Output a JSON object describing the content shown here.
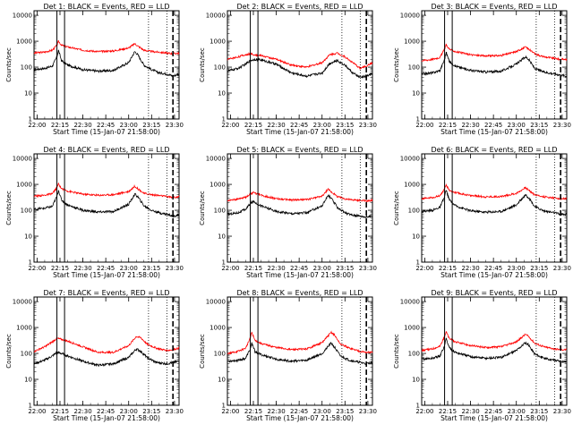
{
  "figure": {
    "ylabel": "Counts/sec",
    "xlabel_prefix": "Start Time (15-Jan-07 21:58:00)",
    "x_ticks": [
      "22:00",
      "22:15",
      "22:30",
      "22:45",
      "23:00",
      "23:15",
      "23:30"
    ],
    "y_ticks": [
      "1",
      "10",
      "100",
      "1000",
      "10000"
    ]
  },
  "colors": {
    "events": "#000000",
    "lld": "#ff0000"
  },
  "chart_data": [
    {
      "type": "line",
      "title": "Det 1: BLACK = Events, RED = LLD",
      "xlim": [
        "21:58",
        "23:33"
      ],
      "ylim": [
        1,
        15000
      ],
      "log_y": true,
      "vlines_solid": [
        "22:13",
        "22:18"
      ],
      "vlines_dotted": [
        "23:13",
        "23:25"
      ],
      "vlines_dashed": [
        "23:29"
      ],
      "series": [
        {
          "name": "Events",
          "color": "#000000",
          "x": [
            "21:58",
            "22:05",
            "22:10",
            "22:13",
            "22:14",
            "22:16",
            "22:20",
            "22:30",
            "22:40",
            "22:50",
            "23:00",
            "23:04",
            "23:06",
            "23:10",
            "23:15",
            "23:20",
            "23:25",
            "23:29",
            "23:33"
          ],
          "y": [
            80,
            90,
            110,
            250,
            450,
            180,
            120,
            80,
            70,
            75,
            150,
            400,
            300,
            120,
            80,
            60,
            55,
            45,
            55
          ]
        },
        {
          "name": "LLD",
          "color": "#ff0000",
          "x": [
            "21:58",
            "22:05",
            "22:10",
            "22:13",
            "22:14",
            "22:16",
            "22:20",
            "22:30",
            "22:40",
            "22:50",
            "23:00",
            "23:04",
            "23:06",
            "23:10",
            "23:15",
            "23:20",
            "23:25",
            "23:29",
            "23:33"
          ],
          "y": [
            350,
            380,
            450,
            700,
            1000,
            700,
            600,
            450,
            400,
            420,
            550,
            800,
            650,
            450,
            400,
            380,
            350,
            330,
            350
          ]
        }
      ]
    },
    {
      "type": "line",
      "title": "Det 2: BLACK = Events, RED = LLD",
      "xlim": [
        "21:58",
        "23:33"
      ],
      "ylim": [
        1,
        15000
      ],
      "log_y": true,
      "vlines_solid": [
        "22:13",
        "22:18"
      ],
      "vlines_dotted": [
        "23:13",
        "23:25"
      ],
      "vlines_dashed": [
        "23:29"
      ],
      "series": [
        {
          "name": "Events",
          "color": "#000000",
          "x": [
            "21:58",
            "22:05",
            "22:10",
            "22:13",
            "22:16",
            "22:20",
            "22:30",
            "22:40",
            "22:50",
            "23:00",
            "23:05",
            "23:10",
            "23:15",
            "23:20",
            "23:25",
            "23:29",
            "23:33"
          ],
          "y": [
            70,
            90,
            130,
            180,
            200,
            190,
            130,
            60,
            45,
            60,
            140,
            180,
            120,
            60,
            40,
            45,
            55
          ]
        },
        {
          "name": "LLD",
          "color": "#ff0000",
          "x": [
            "21:58",
            "22:05",
            "22:10",
            "22:13",
            "22:16",
            "22:20",
            "22:30",
            "22:40",
            "22:50",
            "23:00",
            "23:05",
            "23:10",
            "23:15",
            "23:20",
            "23:25",
            "23:29",
            "23:33"
          ],
          "y": [
            200,
            250,
            300,
            330,
            300,
            280,
            200,
            120,
            100,
            150,
            300,
            350,
            250,
            150,
            90,
            110,
            150
          ]
        }
      ]
    },
    {
      "type": "line",
      "title": "Det 3: BLACK = Events, RED = LLD",
      "xlim": [
        "21:58",
        "23:33"
      ],
      "ylim": [
        1,
        15000
      ],
      "log_y": true,
      "vlines_solid": [
        "22:13",
        "22:18"
      ],
      "vlines_dotted": [
        "23:13",
        "23:25"
      ],
      "vlines_dashed": [
        "23:29"
      ],
      "series": [
        {
          "name": "Events",
          "color": "#000000",
          "x": [
            "21:58",
            "22:05",
            "22:10",
            "22:13",
            "22:14",
            "22:16",
            "22:20",
            "22:30",
            "22:40",
            "22:50",
            "23:00",
            "23:06",
            "23:08",
            "23:12",
            "23:18",
            "23:25",
            "23:29",
            "23:33"
          ],
          "y": [
            55,
            60,
            75,
            200,
            380,
            170,
            110,
            75,
            65,
            70,
            130,
            250,
            200,
            90,
            65,
            55,
            50,
            45
          ]
        },
        {
          "name": "LLD",
          "color": "#ff0000",
          "x": [
            "21:58",
            "22:05",
            "22:10",
            "22:13",
            "22:14",
            "22:16",
            "22:20",
            "22:30",
            "22:40",
            "22:50",
            "23:00",
            "23:06",
            "23:08",
            "23:12",
            "23:18",
            "23:25",
            "23:29",
            "23:33"
          ],
          "y": [
            180,
            200,
            240,
            500,
            750,
            500,
            400,
            300,
            270,
            280,
            400,
            600,
            500,
            330,
            250,
            220,
            200,
            200
          ]
        }
      ]
    },
    {
      "type": "line",
      "title": "Det 4: BLACK = Events, RED = LLD",
      "xlim": [
        "21:58",
        "23:33"
      ],
      "ylim": [
        1,
        15000
      ],
      "log_y": true,
      "vlines_solid": [
        "22:13",
        "22:18"
      ],
      "vlines_dotted": [
        "23:13",
        "23:25"
      ],
      "vlines_dashed": [
        "23:29"
      ],
      "series": [
        {
          "name": "Events",
          "color": "#000000",
          "x": [
            "21:58",
            "22:05",
            "22:10",
            "22:13",
            "22:14",
            "22:16",
            "22:20",
            "22:30",
            "22:40",
            "22:50",
            "23:00",
            "23:04",
            "23:06",
            "23:10",
            "23:15",
            "23:20",
            "23:25",
            "23:29",
            "23:33"
          ],
          "y": [
            110,
            120,
            140,
            350,
            600,
            250,
            160,
            100,
            85,
            90,
            170,
            420,
            330,
            150,
            100,
            80,
            70,
            60,
            65
          ]
        },
        {
          "name": "LLD",
          "color": "#ff0000",
          "x": [
            "21:58",
            "22:05",
            "22:10",
            "22:13",
            "22:14",
            "22:16",
            "22:20",
            "22:30",
            "22:40",
            "22:50",
            "23:00",
            "23:04",
            "23:06",
            "23:10",
            "23:15",
            "23:20",
            "23:25",
            "23:29",
            "23:33"
          ],
          "y": [
            350,
            380,
            440,
            750,
            1050,
            700,
            550,
            420,
            380,
            400,
            530,
            850,
            680,
            450,
            400,
            370,
            340,
            310,
            330
          ]
        }
      ]
    },
    {
      "type": "line",
      "title": "Det 5: BLACK = Events, RED = LLD",
      "xlim": [
        "21:58",
        "23:33"
      ],
      "ylim": [
        1,
        15000
      ],
      "log_y": true,
      "vlines_solid": [
        "22:13",
        "22:18"
      ],
      "vlines_dotted": [
        "23:13",
        "23:25"
      ],
      "vlines_dashed": [
        "23:29"
      ],
      "series": [
        {
          "name": "Events",
          "color": "#000000",
          "x": [
            "21:58",
            "22:05",
            "22:10",
            "22:13",
            "22:15",
            "22:20",
            "22:30",
            "22:40",
            "22:50",
            "23:00",
            "23:04",
            "23:06",
            "23:10",
            "23:15",
            "23:20",
            "23:25",
            "23:29",
            "23:33"
          ],
          "y": [
            70,
            80,
            110,
            180,
            220,
            150,
            90,
            75,
            80,
            150,
            380,
            290,
            130,
            80,
            65,
            60,
            55,
            60
          ]
        },
        {
          "name": "LLD",
          "color": "#ff0000",
          "x": [
            "21:58",
            "22:05",
            "22:10",
            "22:13",
            "22:15",
            "22:20",
            "22:30",
            "22:40",
            "22:50",
            "23:00",
            "23:04",
            "23:06",
            "23:10",
            "23:15",
            "23:20",
            "23:25",
            "23:29",
            "23:33"
          ],
          "y": [
            240,
            270,
            320,
            430,
            480,
            380,
            280,
            250,
            260,
            350,
            650,
            520,
            340,
            280,
            250,
            240,
            230,
            240
          ]
        }
      ]
    },
    {
      "type": "line",
      "title": "Det 6: BLACK = Events, RED = LLD",
      "xlim": [
        "21:58",
        "23:33"
      ],
      "ylim": [
        1,
        15000
      ],
      "log_y": true,
      "vlines_solid": [
        "22:13",
        "22:18"
      ],
      "vlines_dotted": [
        "23:13",
        "23:25"
      ],
      "vlines_dashed": [
        "23:29"
      ],
      "series": [
        {
          "name": "Events",
          "color": "#000000",
          "x": [
            "21:58",
            "22:05",
            "22:10",
            "22:13",
            "22:14",
            "22:16",
            "22:20",
            "22:30",
            "22:40",
            "22:50",
            "23:00",
            "23:06",
            "23:08",
            "23:12",
            "23:18",
            "23:25",
            "23:29",
            "23:33"
          ],
          "y": [
            90,
            100,
            130,
            330,
            600,
            260,
            150,
            95,
            85,
            90,
            160,
            400,
            310,
            140,
            95,
            80,
            70,
            70
          ]
        },
        {
          "name": "LLD",
          "color": "#ff0000",
          "x": [
            "21:58",
            "22:05",
            "22:10",
            "22:13",
            "22:14",
            "22:16",
            "22:20",
            "22:30",
            "22:40",
            "22:50",
            "23:00",
            "23:06",
            "23:08",
            "23:12",
            "23:18",
            "23:25",
            "23:29",
            "23:33"
          ],
          "y": [
            280,
            310,
            370,
            650,
            950,
            600,
            480,
            370,
            330,
            340,
            450,
            750,
            600,
            400,
            330,
            300,
            280,
            280
          ]
        }
      ]
    },
    {
      "type": "line",
      "title": "Det 7: BLACK = Events, RED = LLD",
      "xlim": [
        "21:58",
        "23:33"
      ],
      "ylim": [
        1,
        15000
      ],
      "log_y": true,
      "vlines_solid": [
        "22:13",
        "22:18"
      ],
      "vlines_dotted": [
        "23:13",
        "23:25"
      ],
      "vlines_dashed": [
        "23:29"
      ],
      "series": [
        {
          "name": "Events",
          "color": "#000000",
          "x": [
            "21:58",
            "22:05",
            "22:10",
            "22:13",
            "22:16",
            "22:20",
            "22:30",
            "22:40",
            "22:50",
            "23:00",
            "23:05",
            "23:08",
            "23:12",
            "23:18",
            "23:25",
            "23:29",
            "23:33"
          ],
          "y": [
            40,
            55,
            80,
            110,
            100,
            80,
            50,
            35,
            40,
            70,
            150,
            120,
            70,
            45,
            40,
            45,
            50
          ]
        },
        {
          "name": "LLD",
          "color": "#ff0000",
          "x": [
            "21:58",
            "22:05",
            "22:10",
            "22:13",
            "22:16",
            "22:20",
            "22:30",
            "22:40",
            "22:50",
            "23:00",
            "23:05",
            "23:08",
            "23:12",
            "23:18",
            "23:25",
            "23:29",
            "23:33"
          ],
          "y": [
            120,
            180,
            280,
            380,
            350,
            300,
            180,
            110,
            110,
            200,
            450,
            400,
            230,
            160,
            130,
            140,
            160
          ]
        }
      ]
    },
    {
      "type": "line",
      "title": "Det 8: BLACK = Events, RED = LLD",
      "xlim": [
        "21:58",
        "23:33"
      ],
      "ylim": [
        1,
        15000
      ],
      "log_y": true,
      "vlines_solid": [
        "22:13",
        "22:18"
      ],
      "vlines_dotted": [
        "23:13",
        "23:25"
      ],
      "vlines_dashed": [
        "23:29"
      ],
      "series": [
        {
          "name": "Events",
          "color": "#000000",
          "x": [
            "21:58",
            "22:05",
            "22:10",
            "22:13",
            "22:14",
            "22:16",
            "22:20",
            "22:30",
            "22:40",
            "22:50",
            "23:00",
            "23:06",
            "23:08",
            "23:12",
            "23:18",
            "23:25",
            "23:29",
            "23:33"
          ],
          "y": [
            50,
            55,
            65,
            150,
            250,
            120,
            90,
            60,
            50,
            55,
            100,
            250,
            180,
            80,
            55,
            45,
            40,
            45
          ]
        },
        {
          "name": "LLD",
          "color": "#ff0000",
          "x": [
            "21:58",
            "22:05",
            "22:10",
            "22:13",
            "22:14",
            "22:16",
            "22:20",
            "22:30",
            "22:40",
            "22:50",
            "23:00",
            "23:06",
            "23:08",
            "23:12",
            "23:18",
            "23:25",
            "23:29",
            "23:33"
          ],
          "y": [
            100,
            120,
            160,
            400,
            650,
            320,
            240,
            170,
            140,
            150,
            260,
            650,
            520,
            230,
            160,
            120,
            110,
            110
          ]
        }
      ]
    },
    {
      "type": "line",
      "title": "Det 9: BLACK = Events, RED = LLD",
      "xlim": [
        "21:58",
        "23:33"
      ],
      "ylim": [
        1,
        15000
      ],
      "log_y": true,
      "vlines_solid": [
        "22:13",
        "22:18"
      ],
      "vlines_dotted": [
        "23:13",
        "23:25"
      ],
      "vlines_dashed": [
        "23:29"
      ],
      "series": [
        {
          "name": "Events",
          "color": "#000000",
          "x": [
            "21:58",
            "22:05",
            "22:10",
            "22:13",
            "22:14",
            "22:16",
            "22:20",
            "22:30",
            "22:40",
            "22:50",
            "23:00",
            "23:06",
            "23:08",
            "23:12",
            "23:18",
            "23:25",
            "23:29",
            "23:33"
          ],
          "y": [
            60,
            65,
            80,
            200,
            380,
            170,
            110,
            75,
            65,
            70,
            130,
            260,
            210,
            95,
            65,
            55,
            50,
            48
          ]
        },
        {
          "name": "LLD",
          "color": "#ff0000",
          "x": [
            "21:58",
            "22:05",
            "22:10",
            "22:13",
            "22:14",
            "22:16",
            "22:20",
            "22:30",
            "22:40",
            "22:50",
            "23:00",
            "23:06",
            "23:08",
            "23:12",
            "23:18",
            "23:25",
            "23:29",
            "23:33"
          ],
          "y": [
            130,
            150,
            190,
            450,
            700,
            380,
            280,
            200,
            170,
            180,
            280,
            550,
            450,
            250,
            180,
            150,
            140,
            140
          ]
        }
      ]
    }
  ]
}
